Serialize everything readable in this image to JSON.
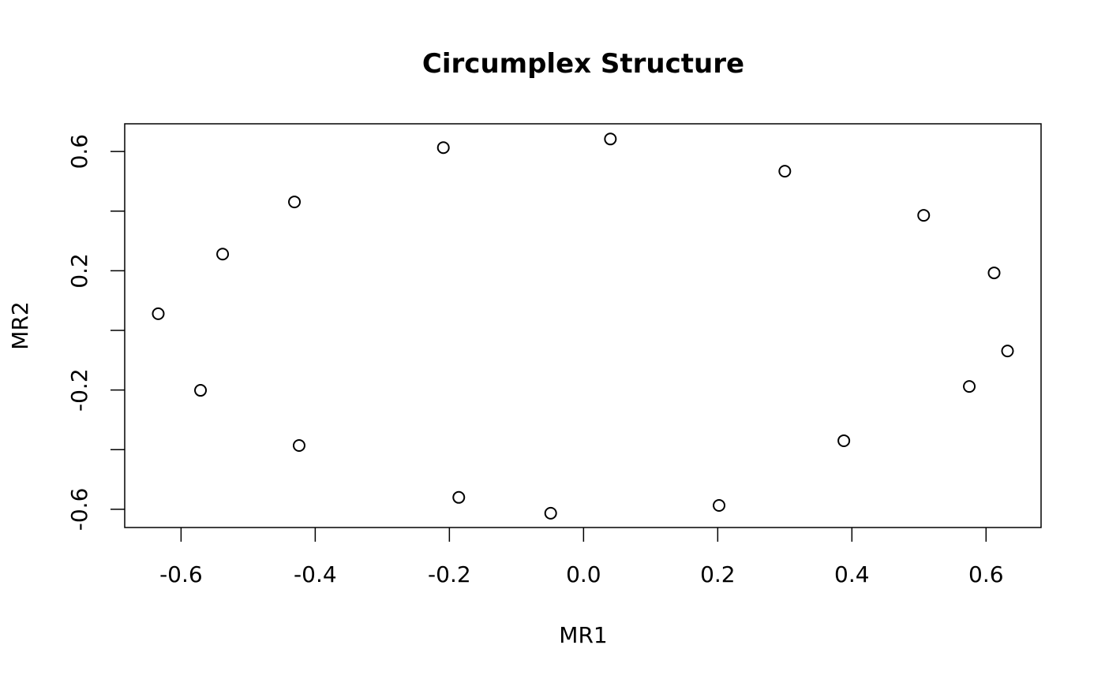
{
  "chart_data": {
    "type": "scatter",
    "title": "Circumplex Structure",
    "x_label": "MR1",
    "y_label": "MR2",
    "x": [
      -0.634,
      -0.538,
      -0.431,
      -0.209,
      0.04,
      0.3,
      0.507,
      0.612,
      0.632,
      0.575,
      0.388,
      0.202,
      -0.049,
      -0.186,
      -0.424,
      -0.571
    ],
    "values": [
      0.056,
      0.256,
      0.431,
      0.613,
      0.642,
      0.534,
      0.386,
      0.193,
      -0.069,
      -0.188,
      -0.37,
      -0.587,
      -0.613,
      -0.56,
      -0.386,
      -0.201
    ],
    "color": "#000000",
    "xlim": [
      -0.684,
      0.682
    ],
    "ylim": [
      -0.661,
      0.693
    ],
    "xticks": [
      -0.6,
      -0.4,
      -0.2,
      {
        "value": 0,
        "label": "0.0"
      },
      0.2,
      0.4,
      0.6
    ],
    "yticks": [
      -0.6,
      {
        "value": -0.4,
        "label": null
      },
      -0.2,
      {
        "value": 0,
        "label": null
      },
      0.2,
      {
        "value": 0.4,
        "label": null
      },
      0.6
    ]
  }
}
